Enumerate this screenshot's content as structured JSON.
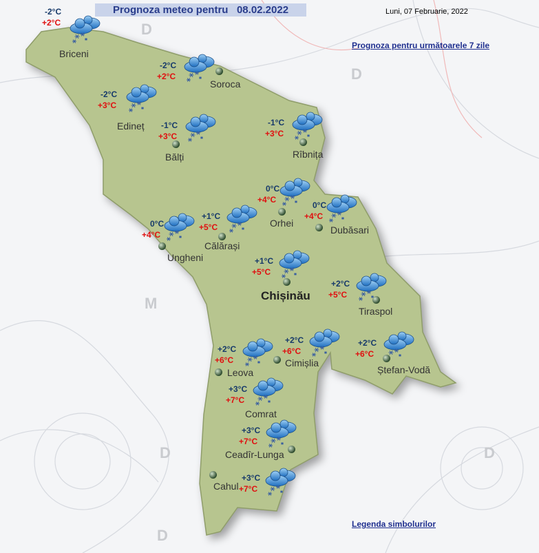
{
  "header": {
    "title": "Prognoza meteo pentru   08.02.2022",
    "current_date": "Luni, 07 Februarie, 2022"
  },
  "links": {
    "week_forecast": "Prognoza pentru următoarele 7 zile",
    "legend": "Legenda simbolurilor"
  },
  "colors": {
    "title_bg": "#c9d3ea",
    "title_text": "#2a3d8c",
    "min_temp": "#173a6a",
    "max_temp": "#e01010",
    "land": "#b5c48e"
  },
  "background_labels": [
    "D",
    "D",
    "M",
    "D",
    "D",
    "D"
  ],
  "forecasts": [
    {
      "city": "Briceni",
      "min": "-2°C",
      "max": "+2°C",
      "icon": "cloud-snow-icon"
    },
    {
      "city": "Soroca",
      "min": "-2°C",
      "max": "+2°C",
      "icon": "cloud-snow-icon"
    },
    {
      "city": "Edineț",
      "min": "-2°C",
      "max": "+3°C",
      "icon": "cloud-snow-icon"
    },
    {
      "city": "Bălți",
      "min": "-1°C",
      "max": "+3°C",
      "icon": "cloud-snow-icon"
    },
    {
      "city": "Rîbnița",
      "min": "-1°C",
      "max": "+3°C",
      "icon": "cloud-snow-icon"
    },
    {
      "city": "Orhei",
      "min": "0°C",
      "max": "+4°C",
      "icon": "cloud-snow-icon"
    },
    {
      "city": "Dubăsari",
      "min": "0°C",
      "max": "+4°C",
      "icon": "cloud-snow-icon"
    },
    {
      "city": "Ungheni",
      "min": "0°C",
      "max": "+4°C",
      "icon": "cloud-snow-icon"
    },
    {
      "city": "Călărași",
      "min": "+1°C",
      "max": "+5°C",
      "icon": "cloud-snow-icon"
    },
    {
      "city": "Chișinău",
      "min": "+1°C",
      "max": "+5°C",
      "icon": "cloud-snow-icon",
      "capital": true
    },
    {
      "city": "Tiraspol",
      "min": "+2°C",
      "max": "+5°C",
      "icon": "cloud-snow-icon"
    },
    {
      "city": "Leova",
      "min": "+2°C",
      "max": "+6°C",
      "icon": "cloud-snow-icon"
    },
    {
      "city": "Cimișlia",
      "min": "+2°C",
      "max": "+6°C",
      "icon": "cloud-snow-icon"
    },
    {
      "city": "Ștefan-Vodă",
      "min": "+2°C",
      "max": "+6°C",
      "icon": "cloud-snow-icon"
    },
    {
      "city": "Comrat",
      "min": "+3°C",
      "max": "+7°C",
      "icon": "cloud-snow-icon"
    },
    {
      "city": "Ceadîr-Lunga",
      "min": "+3°C",
      "max": "+7°C",
      "icon": "cloud-snow-icon"
    },
    {
      "city": "Cahul"
    },
    {
      "min": "+3°C",
      "max": "+7°C",
      "icon": "cloud-snow-icon"
    }
  ]
}
